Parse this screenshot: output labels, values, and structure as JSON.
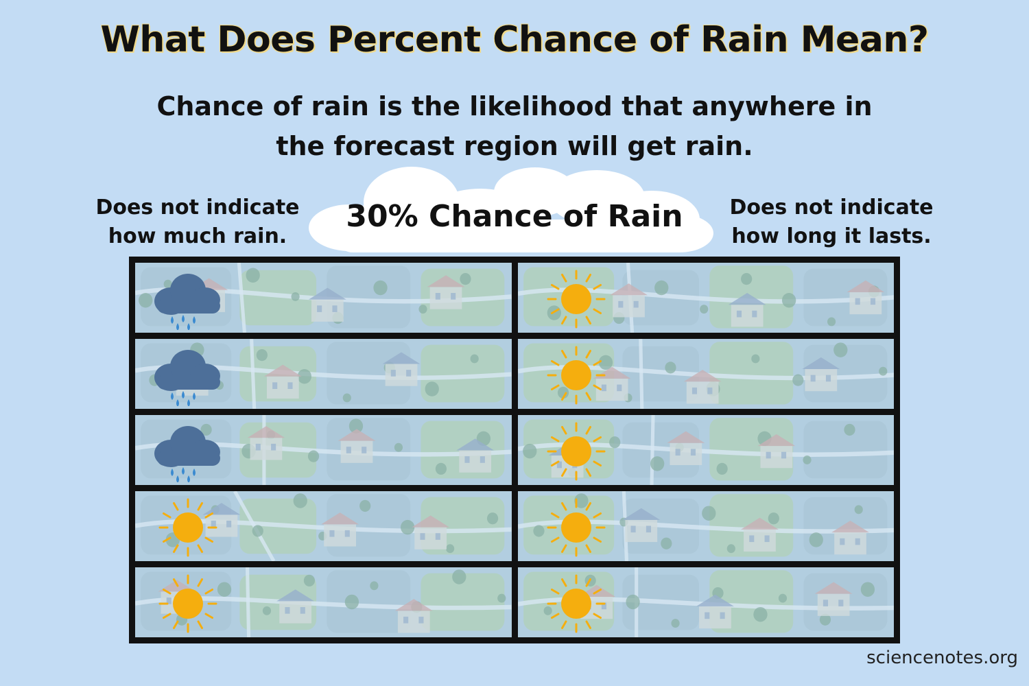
{
  "title": "What Does Percent Chance of Rain Mean?",
  "subtitle_line1": "Chance of rain is the likelihood that anywhere in",
  "subtitle_line2": "the forecast region will get rain.",
  "left_note_line1": "Does not indicate",
  "left_note_line2": "how much rain.",
  "right_note_line1": "Does not indicate",
  "right_note_line2": "how long it lasts.",
  "cloud_label": "30% Chance of Rain",
  "grid": {
    "cells": [
      {
        "icon": "rain-cloud-icon"
      },
      {
        "icon": "sun-icon"
      },
      {
        "icon": "rain-cloud-icon"
      },
      {
        "icon": "sun-icon"
      },
      {
        "icon": "rain-cloud-icon"
      },
      {
        "icon": "sun-icon"
      },
      {
        "icon": "sun-icon"
      },
      {
        "icon": "sun-icon"
      },
      {
        "icon": "sun-icon"
      },
      {
        "icon": "sun-icon"
      }
    ]
  },
  "colors": {
    "background": "#c3dcf4",
    "sun": "#f5ae0e",
    "rain_cloud": "#4d6f99",
    "rain_drop": "#3a8ad0",
    "grid_border": "#111111",
    "title_outline": "#f0d98a"
  },
  "footer": "sciencenotes.org"
}
